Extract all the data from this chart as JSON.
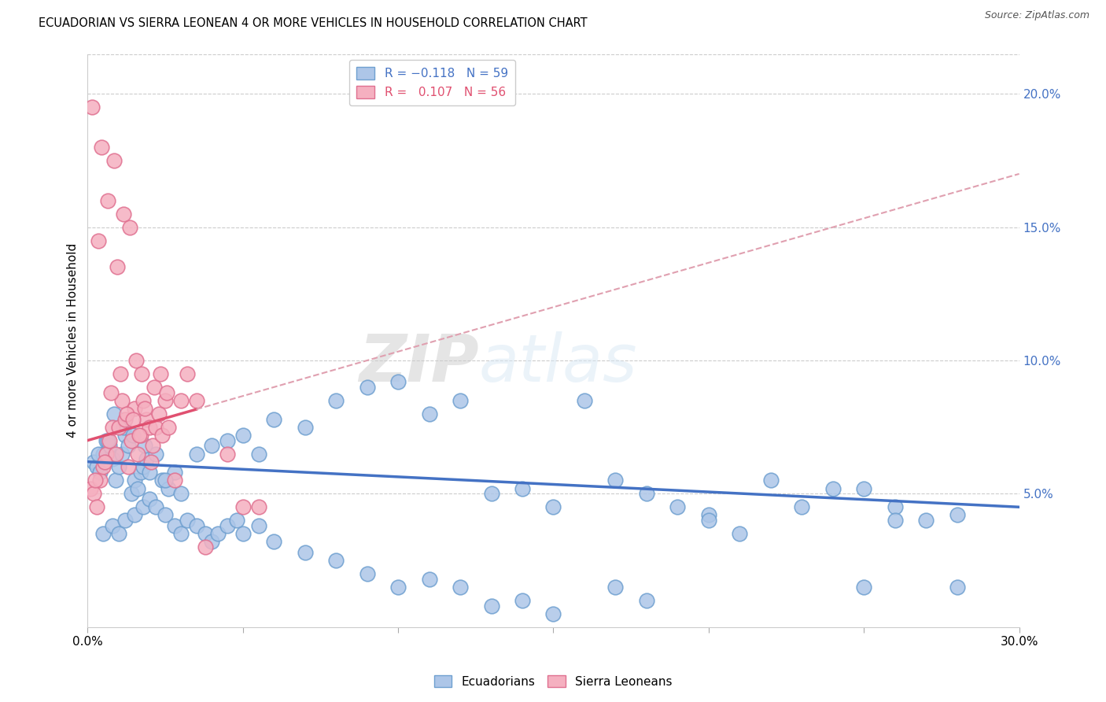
{
  "title": "ECUADORIAN VS SIERRA LEONEAN 4 OR MORE VEHICLES IN HOUSEHOLD CORRELATION CHART",
  "source": "Source: ZipAtlas.com",
  "ylabel": "4 or more Vehicles in Household",
  "xmin": 0.0,
  "xmax": 30.0,
  "ymin": 0.0,
  "ymax": 21.5,
  "right_yticks": [
    5.0,
    10.0,
    15.0,
    20.0
  ],
  "right_yticklabels": [
    "5.0%",
    "10.0%",
    "15.0%",
    "20.0%"
  ],
  "ecuadorian_color": "#adc6e8",
  "ecuadorian_edge": "#6fa0d0",
  "sierraleone_color": "#f5b0c0",
  "sierraleone_edge": "#e07090",
  "trendline_blue": "#4472c4",
  "trendline_pink_solid": "#e05070",
  "trendline_pink_dash": "#e0a0b0",
  "legend_R1": "R = -0.118",
  "legend_N1": "N = 59",
  "legend_R2": "R =  0.107",
  "legend_N2": "N = 56",
  "watermark": "ZIPatlas",
  "ecuadorian_x": [
    0.2,
    0.3,
    0.4,
    0.5,
    0.6,
    0.7,
    0.8,
    0.9,
    1.0,
    1.1,
    1.2,
    1.3,
    1.4,
    1.5,
    1.6,
    1.7,
    1.8,
    1.9,
    2.0,
    2.2,
    2.4,
    2.6,
    2.8,
    3.0,
    3.5,
    4.0,
    4.5,
    5.0,
    5.5,
    6.0,
    7.0,
    8.0,
    9.0,
    10.0,
    11.0,
    12.0,
    13.0,
    14.0,
    15.0,
    16.0,
    17.0,
    18.0,
    19.0,
    20.0,
    21.0,
    22.0,
    23.0,
    24.0,
    25.0,
    26.0,
    27.0,
    28.0,
    0.35,
    0.65,
    0.85,
    1.15,
    1.45,
    1.85,
    2.5
  ],
  "ecuadorian_y": [
    6.2,
    6.0,
    5.8,
    6.5,
    7.0,
    6.8,
    6.3,
    5.5,
    6.0,
    6.5,
    7.2,
    6.8,
    5.0,
    5.5,
    5.2,
    5.8,
    6.0,
    6.3,
    5.8,
    6.5,
    5.5,
    5.2,
    5.8,
    5.0,
    6.5,
    6.8,
    7.0,
    7.2,
    6.5,
    7.8,
    7.5,
    8.5,
    9.0,
    9.2,
    8.0,
    8.5,
    5.0,
    5.2,
    4.5,
    8.5,
    5.5,
    5.0,
    4.5,
    4.2,
    3.5,
    5.5,
    4.5,
    5.2,
    5.2,
    4.5,
    4.0,
    4.2,
    6.5,
    7.0,
    8.0,
    7.5,
    7.2,
    6.8,
    5.5
  ],
  "ecuadorian_x_below": [
    0.5,
    0.8,
    1.0,
    1.2,
    1.5,
    1.8,
    2.0,
    2.2,
    2.5,
    2.8,
    3.0,
    3.2,
    3.5,
    3.8,
    4.0,
    4.2,
    4.5,
    4.8,
    5.0,
    5.5,
    6.0,
    7.0,
    8.0,
    9.0,
    10.0,
    11.0,
    12.0,
    13.0,
    14.0,
    15.0,
    17.0,
    18.0,
    20.0,
    25.0,
    26.0,
    28.0
  ],
  "ecuadorian_y_below": [
    3.5,
    3.8,
    3.5,
    4.0,
    4.2,
    4.5,
    4.8,
    4.5,
    4.2,
    3.8,
    3.5,
    4.0,
    3.8,
    3.5,
    3.2,
    3.5,
    3.8,
    4.0,
    3.5,
    3.8,
    3.2,
    2.8,
    2.5,
    2.0,
    1.5,
    1.8,
    1.5,
    0.8,
    1.0,
    0.5,
    1.5,
    1.0,
    4.0,
    1.5,
    4.0,
    1.5
  ],
  "sierraleone_x": [
    0.1,
    0.2,
    0.3,
    0.4,
    0.5,
    0.6,
    0.7,
    0.8,
    0.9,
    1.0,
    1.1,
    1.2,
    1.3,
    1.4,
    1.5,
    1.6,
    1.7,
    1.8,
    1.9,
    2.0,
    2.1,
    2.2,
    2.3,
    2.4,
    2.5,
    2.6,
    2.8,
    3.0,
    3.2,
    3.5,
    0.25,
    0.55,
    0.75,
    1.05,
    1.25,
    1.45,
    1.65,
    1.85,
    2.05,
    0.35,
    0.65,
    0.85,
    1.15,
    1.35,
    4.5,
    5.0,
    0.15,
    0.45,
    0.95,
    1.55,
    1.75,
    2.15,
    2.35,
    2.55,
    3.8,
    5.5
  ],
  "sierraleone_y": [
    5.2,
    5.0,
    4.5,
    5.5,
    6.0,
    6.5,
    7.0,
    7.5,
    6.5,
    7.5,
    8.5,
    7.8,
    6.0,
    7.0,
    8.2,
    6.5,
    7.2,
    8.5,
    7.8,
    7.5,
    6.8,
    7.5,
    8.0,
    7.2,
    8.5,
    7.5,
    5.5,
    8.5,
    9.5,
    8.5,
    5.5,
    6.2,
    8.8,
    9.5,
    8.0,
    7.8,
    7.2,
    8.2,
    6.2,
    14.5,
    16.0,
    17.5,
    15.5,
    15.0,
    6.5,
    4.5,
    19.5,
    18.0,
    13.5,
    10.0,
    9.5,
    9.0,
    9.5,
    8.8,
    3.0,
    4.5
  ]
}
